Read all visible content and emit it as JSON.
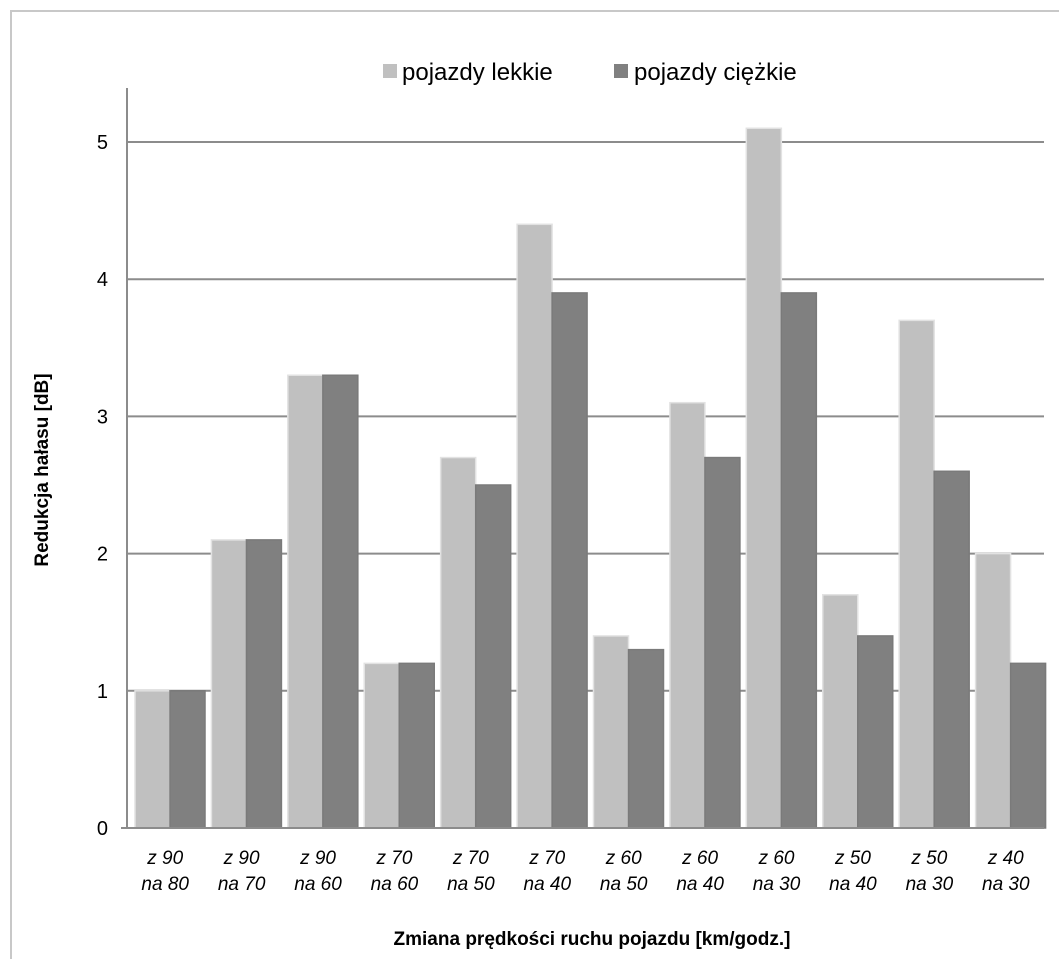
{
  "chart_data": {
    "type": "bar",
    "title": "",
    "xlabel": "Zmiana prędkości ruchu pojazdu [km/godz.]",
    "ylabel": "Redukcja hałasu [dB]",
    "ylim": [
      0,
      5
    ],
    "yticks": [
      0,
      1,
      2,
      3,
      4,
      5
    ],
    "grid": true,
    "legend_position": "top",
    "categories": [
      [
        "z 90",
        "na 80"
      ],
      [
        "z 90",
        "na 70"
      ],
      [
        "z 90",
        "na 60"
      ],
      [
        "z 70",
        "na 60"
      ],
      [
        "z 70",
        "na 50"
      ],
      [
        "z 70",
        "na 40"
      ],
      [
        "z 60",
        "na 50"
      ],
      [
        "z 60",
        "na 40"
      ],
      [
        "z 60",
        "na 30"
      ],
      [
        "z 50",
        "na 40"
      ],
      [
        "z 50",
        "na 30"
      ],
      [
        "z 40",
        "na 30"
      ]
    ],
    "series": [
      {
        "name": "pojazdy lekkie",
        "color": "#c0c0c0",
        "values": [
          1.0,
          2.1,
          3.3,
          1.2,
          2.7,
          4.4,
          1.4,
          3.1,
          5.1,
          1.7,
          3.7,
          2.0
        ]
      },
      {
        "name": "pojazdy ciężkie",
        "color": "#808080",
        "values": [
          1.0,
          2.1,
          3.3,
          1.2,
          2.5,
          3.9,
          1.3,
          2.7,
          3.9,
          1.4,
          2.6,
          1.2
        ]
      }
    ]
  }
}
